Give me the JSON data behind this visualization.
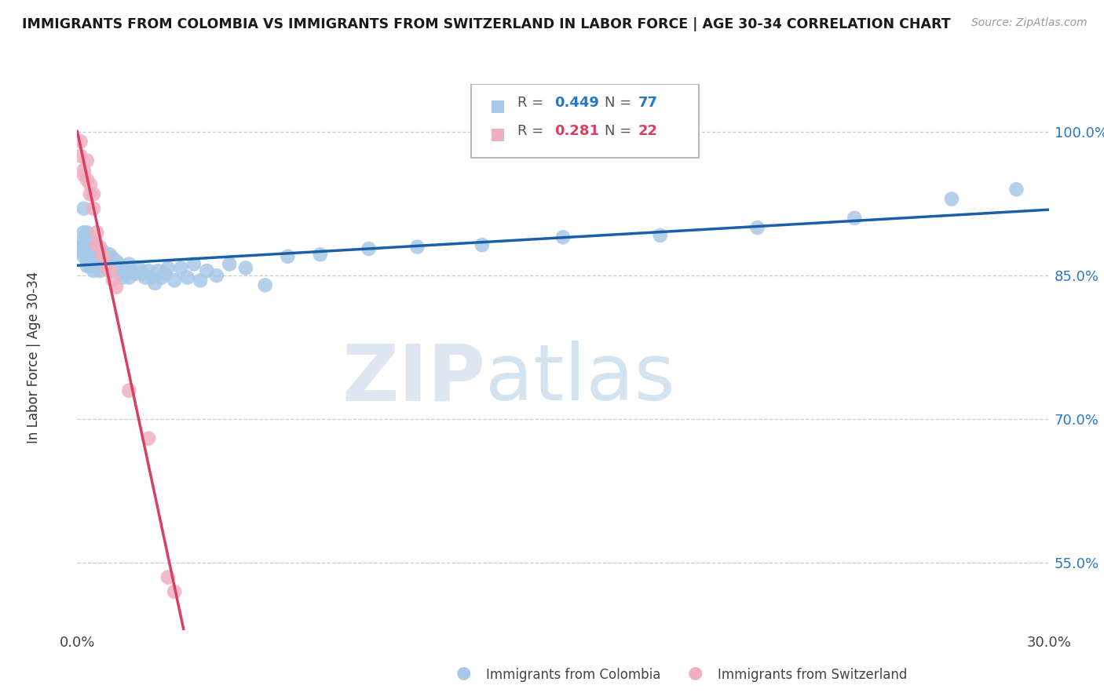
{
  "title": "IMMIGRANTS FROM COLOMBIA VS IMMIGRANTS FROM SWITZERLAND IN LABOR FORCE | AGE 30-34 CORRELATION CHART",
  "source": "Source: ZipAtlas.com",
  "xlabel_bottom": "Immigrants from Colombia",
  "xlabel_bottom2": "Immigrants from Switzerland",
  "ylabel": "In Labor Force | Age 30-34",
  "xlim": [
    0.0,
    0.3
  ],
  "ylim": [
    0.48,
    1.05
  ],
  "yticks": [
    0.55,
    0.7,
    0.85,
    1.0
  ],
  "ytick_labels": [
    "55.0%",
    "70.0%",
    "85.0%",
    "100.0%"
  ],
  "xtick_positions": [
    0.0,
    0.3
  ],
  "xtick_labels": [
    "0.0%",
    "30.0%"
  ],
  "colombia_R": 0.449,
  "colombia_N": 77,
  "switzerland_R": 0.281,
  "switzerland_N": 22,
  "colombia_color": "#a8c8e8",
  "switzerland_color": "#f0b0c0",
  "colombia_line_color": "#1a5fa8",
  "switzerland_line_color": "#d84060",
  "background_color": "#ffffff",
  "watermark_zip": "ZIP",
  "watermark_atlas": "atlas",
  "colombia_x": [
    0.001,
    0.001,
    0.001,
    0.002,
    0.002,
    0.002,
    0.002,
    0.003,
    0.003,
    0.003,
    0.003,
    0.004,
    0.004,
    0.004,
    0.004,
    0.005,
    0.005,
    0.005,
    0.005,
    0.006,
    0.006,
    0.006,
    0.007,
    0.007,
    0.007,
    0.007,
    0.008,
    0.008,
    0.009,
    0.009,
    0.01,
    0.01,
    0.01,
    0.011,
    0.011,
    0.012,
    0.012,
    0.013,
    0.013,
    0.014,
    0.014,
    0.015,
    0.016,
    0.016,
    0.017,
    0.018,
    0.019,
    0.02,
    0.021,
    0.022,
    0.023,
    0.024,
    0.025,
    0.026,
    0.027,
    0.028,
    0.03,
    0.032,
    0.034,
    0.036,
    0.038,
    0.04,
    0.043,
    0.047,
    0.052,
    0.058,
    0.065,
    0.075,
    0.09,
    0.105,
    0.125,
    0.15,
    0.18,
    0.21,
    0.24,
    0.27,
    0.29
  ],
  "colombia_y": [
    0.885,
    0.88,
    0.875,
    0.92,
    0.895,
    0.875,
    0.87,
    0.895,
    0.875,
    0.865,
    0.86,
    0.89,
    0.875,
    0.87,
    0.86,
    0.88,
    0.87,
    0.865,
    0.855,
    0.88,
    0.87,
    0.86,
    0.878,
    0.868,
    0.862,
    0.855,
    0.875,
    0.862,
    0.87,
    0.858,
    0.872,
    0.862,
    0.855,
    0.868,
    0.858,
    0.865,
    0.855,
    0.862,
    0.852,
    0.858,
    0.848,
    0.855,
    0.862,
    0.848,
    0.855,
    0.852,
    0.858,
    0.852,
    0.848,
    0.855,
    0.848,
    0.842,
    0.855,
    0.848,
    0.852,
    0.858,
    0.845,
    0.858,
    0.848,
    0.862,
    0.845,
    0.855,
    0.85,
    0.862,
    0.858,
    0.84,
    0.87,
    0.872,
    0.878,
    0.88,
    0.882,
    0.89,
    0.892,
    0.9,
    0.91,
    0.93,
    0.94
  ],
  "switzerland_x": [
    0.001,
    0.001,
    0.002,
    0.002,
    0.003,
    0.003,
    0.004,
    0.004,
    0.005,
    0.005,
    0.006,
    0.006,
    0.007,
    0.008,
    0.009,
    0.01,
    0.011,
    0.012,
    0.016,
    0.022,
    0.028,
    0.03
  ],
  "switzerland_y": [
    0.99,
    0.975,
    0.96,
    0.955,
    0.97,
    0.95,
    0.945,
    0.935,
    0.935,
    0.92,
    0.895,
    0.882,
    0.88,
    0.87,
    0.858,
    0.855,
    0.845,
    0.838,
    0.73,
    0.68,
    0.535,
    0.52
  ]
}
